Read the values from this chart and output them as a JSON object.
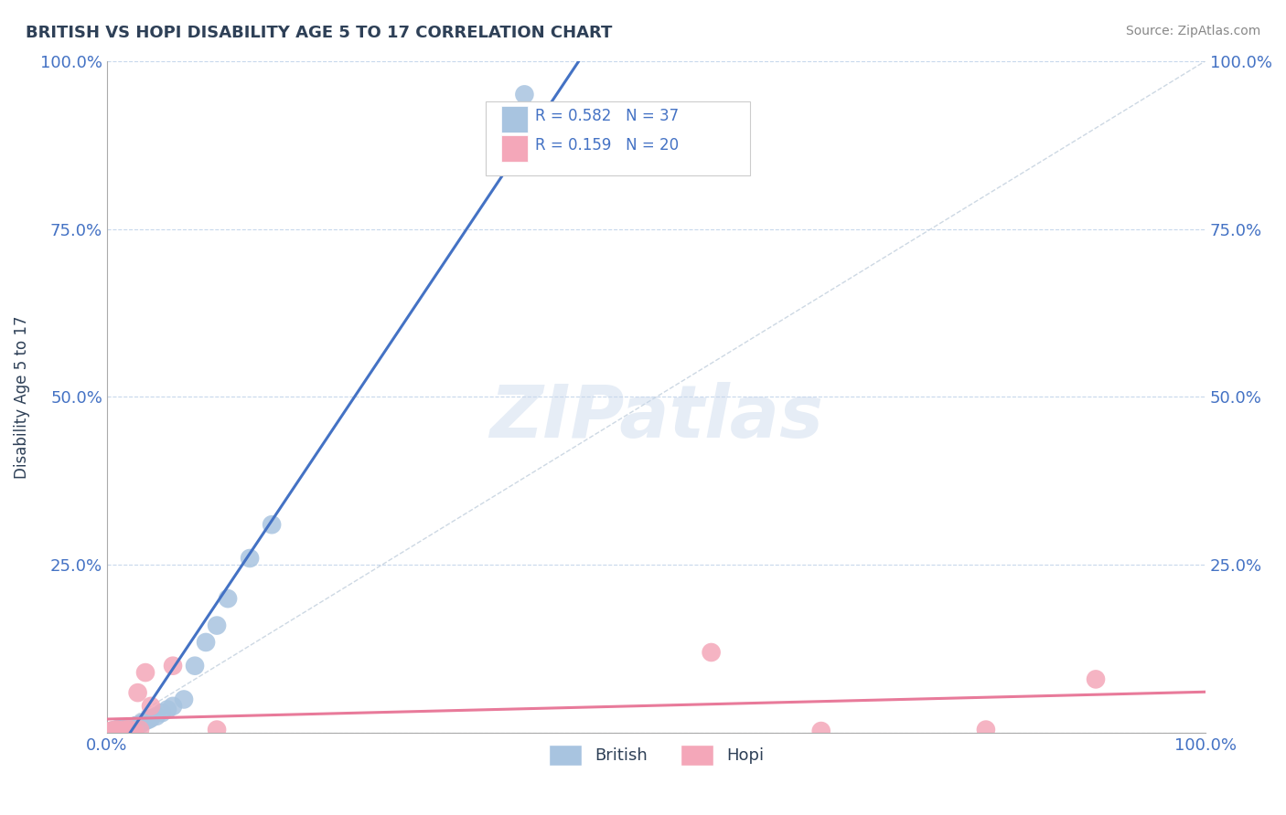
{
  "title": "BRITISH VS HOPI DISABILITY AGE 5 TO 17 CORRELATION CHART",
  "source": "Source: ZipAtlas.com",
  "ylabel": "Disability Age 5 to 17",
  "xlim": [
    0,
    1.0
  ],
  "ylim": [
    0,
    1.0
  ],
  "ytick_positions": [
    0.0,
    0.25,
    0.5,
    0.75,
    1.0
  ],
  "british_R": 0.582,
  "british_N": 37,
  "hopi_R": 0.159,
  "hopi_N": 20,
  "british_color": "#a8c4e0",
  "hopi_color": "#f4a7b9",
  "british_line_color": "#4472c4",
  "hopi_line_color": "#e87a9a",
  "ref_line_color": "#b8c8d8",
  "title_color": "#2e4057",
  "tick_color": "#4472c4",
  "watermark": "ZIPatlas",
  "watermark_color": "#c8d8ec",
  "british_x": [
    0.005,
    0.006,
    0.007,
    0.008,
    0.009,
    0.01,
    0.011,
    0.012,
    0.013,
    0.014,
    0.015,
    0.016,
    0.017,
    0.018,
    0.019,
    0.02,
    0.022,
    0.024,
    0.026,
    0.028,
    0.03,
    0.032,
    0.035,
    0.038,
    0.04,
    0.045,
    0.05,
    0.055,
    0.06,
    0.07,
    0.08,
    0.09,
    0.1,
    0.11,
    0.13,
    0.15,
    0.38
  ],
  "british_y": [
    0.003,
    0.004,
    0.003,
    0.005,
    0.004,
    0.005,
    0.004,
    0.003,
    0.006,
    0.005,
    0.006,
    0.007,
    0.005,
    0.006,
    0.008,
    0.007,
    0.008,
    0.009,
    0.01,
    0.012,
    0.013,
    0.015,
    0.018,
    0.02,
    0.022,
    0.025,
    0.03,
    0.035,
    0.04,
    0.05,
    0.1,
    0.135,
    0.16,
    0.2,
    0.26,
    0.31,
    0.95
  ],
  "hopi_x": [
    0.003,
    0.005,
    0.007,
    0.009,
    0.01,
    0.012,
    0.015,
    0.018,
    0.02,
    0.025,
    0.028,
    0.03,
    0.035,
    0.04,
    0.06,
    0.1,
    0.55,
    0.65,
    0.8,
    0.9
  ],
  "hopi_y": [
    0.003,
    0.004,
    0.003,
    0.005,
    0.004,
    0.003,
    0.005,
    0.004,
    0.006,
    0.003,
    0.06,
    0.005,
    0.09,
    0.04,
    0.1,
    0.005,
    0.12,
    0.003,
    0.005,
    0.08
  ]
}
